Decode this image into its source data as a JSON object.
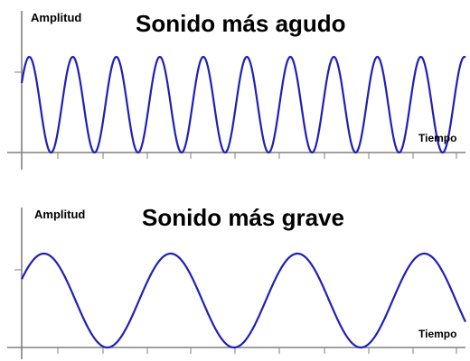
{
  "colors": {
    "wave": "#1f1fb8",
    "axis": "#808080"
  },
  "panels": [
    {
      "id": "agudo",
      "title": "Sonido más agudo",
      "ylabel": "Amplitud",
      "xlabel": "Tiempo",
      "cycles_visible": 10.2
    },
    {
      "id": "grave",
      "title": "Sonido más grave",
      "ylabel": "Amplitud",
      "xlabel": "Tiempo",
      "cycles_visible": 3.5
    }
  ]
}
